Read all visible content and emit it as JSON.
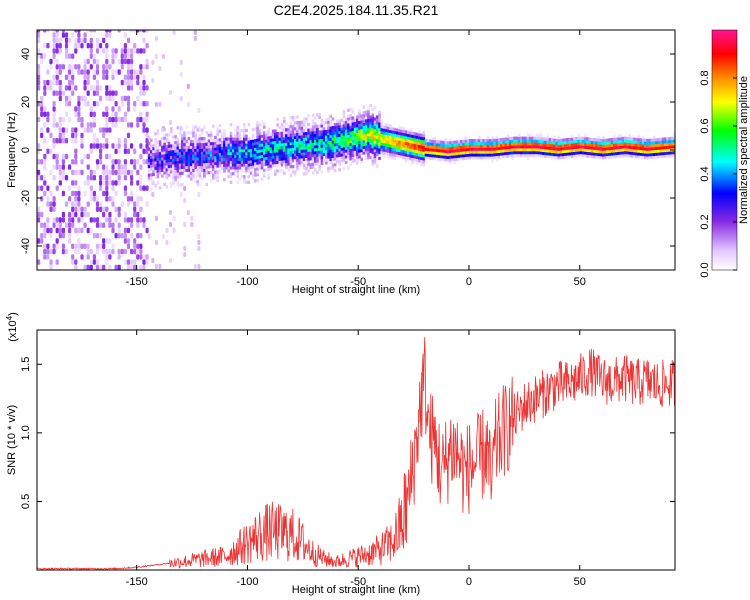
{
  "title": "C2E4.2025.184.11.35.R21",
  "chart_data": [
    {
      "type": "heatmap",
      "xlabel": "Height of straight line (km)",
      "ylabel": "Frequency (Hz)",
      "xlim": [
        -195,
        93
      ],
      "ylim": [
        -50,
        50
      ],
      "x_ticks": [
        -150,
        -100,
        -50,
        0,
        50
      ],
      "x_tick_labels": [
        "-150",
        "-100",
        "-50",
        "0",
        "50"
      ],
      "y_ticks": [
        -40,
        -20,
        0,
        20,
        40
      ],
      "y_tick_labels": [
        "-40",
        "-20",
        "0",
        "20",
        "40"
      ],
      "colorbar": {
        "label": "Normalized spectral amplitude",
        "range": [
          0,
          1
        ],
        "ticks": [
          0.0,
          0.2,
          0.4,
          0.6,
          0.8
        ],
        "tick_labels": [
          "0.0",
          "0.2",
          "0.4",
          "0.6",
          "0.8"
        ],
        "colors": [
          "#ffffff",
          "#e4c8ff",
          "#8a2be2",
          "#0000ff",
          "#00ffff",
          "#00ff00",
          "#ffff00",
          "#ff8c00",
          "#ff0000",
          "#ff1493"
        ]
      },
      "ridge": {
        "x": [
          -145,
          -130,
          -120,
          -110,
          -100,
          -90,
          -80,
          -70,
          -60,
          -50,
          -45,
          -40,
          -35,
          -30,
          -25,
          -20,
          -10,
          0,
          10,
          20,
          30,
          40,
          50,
          60,
          70,
          80,
          92
        ],
        "frequency": [
          -5,
          -3,
          -3,
          -2,
          -2,
          0,
          1,
          2,
          3,
          5,
          6,
          4,
          3,
          2,
          1,
          0,
          -1,
          0,
          0,
          1,
          1,
          0,
          1,
          0,
          1,
          0,
          1
        ],
        "amplitude": [
          0.25,
          0.3,
          0.3,
          0.35,
          0.4,
          0.45,
          0.45,
          0.45,
          0.5,
          0.6,
          0.65,
          0.7,
          0.75,
          0.8,
          0.85,
          0.9,
          0.95,
          0.95,
          0.95,
          0.95,
          0.95,
          0.95,
          0.95,
          0.95,
          0.95,
          0.95,
          0.9
        ]
      },
      "noise_region_x": [
        -195,
        -145
      ],
      "grid": false
    },
    {
      "type": "line",
      "xlabel": "Height of straight line (km)",
      "ylabel": "SNR (10 * v/v)",
      "multiplier_label": "(x10",
      "multiplier_exponent": "4",
      "multiplier_close": ")",
      "xlim": [
        -195,
        93
      ],
      "ylim": [
        0,
        1.75
      ],
      "x_ticks": [
        -150,
        -100,
        -50,
        0,
        50
      ],
      "x_tick_labels": [
        "-150",
        "-100",
        "-50",
        "0",
        "50"
      ],
      "y_ticks": [
        0.5,
        1.0,
        1.5
      ],
      "y_tick_labels": [
        "0.5",
        "1.0",
        "1.5"
      ],
      "line_color": "#ee3333",
      "series": [
        {
          "x": [
            -195,
            -170,
            -160,
            -150,
            -140,
            -130,
            -120,
            -110,
            -105,
            -100,
            -95,
            -90,
            -85,
            -80,
            -75,
            -70,
            -65,
            -60,
            -55,
            -50,
            -45,
            -40,
            -35,
            -33,
            -30,
            -27,
            -24,
            -22,
            -20,
            -18,
            -15,
            -12,
            -10,
            -8,
            -5,
            -2,
            0,
            5,
            8,
            10,
            12,
            15,
            20,
            25,
            30,
            35,
            40,
            45,
            50,
            55,
            60,
            65,
            70,
            75,
            80,
            85,
            92
          ],
          "values": [
            0.01,
            0.01,
            0.01,
            0.02,
            0.04,
            0.06,
            0.08,
            0.1,
            0.15,
            0.2,
            0.25,
            0.28,
            0.27,
            0.26,
            0.2,
            0.12,
            0.08,
            0.06,
            0.08,
            0.1,
            0.12,
            0.15,
            0.2,
            0.25,
            0.35,
            0.55,
            0.9,
            1.2,
            1.4,
            1.0,
            0.9,
            0.7,
            0.8,
            0.9,
            0.85,
            0.7,
            0.75,
            0.8,
            0.9,
            0.6,
            0.9,
            1.0,
            1.1,
            1.2,
            1.25,
            1.3,
            1.35,
            1.35,
            1.4,
            1.45,
            1.38,
            1.37,
            1.4,
            1.36,
            1.38,
            1.35,
            1.36
          ]
        }
      ],
      "grid": false
    }
  ]
}
